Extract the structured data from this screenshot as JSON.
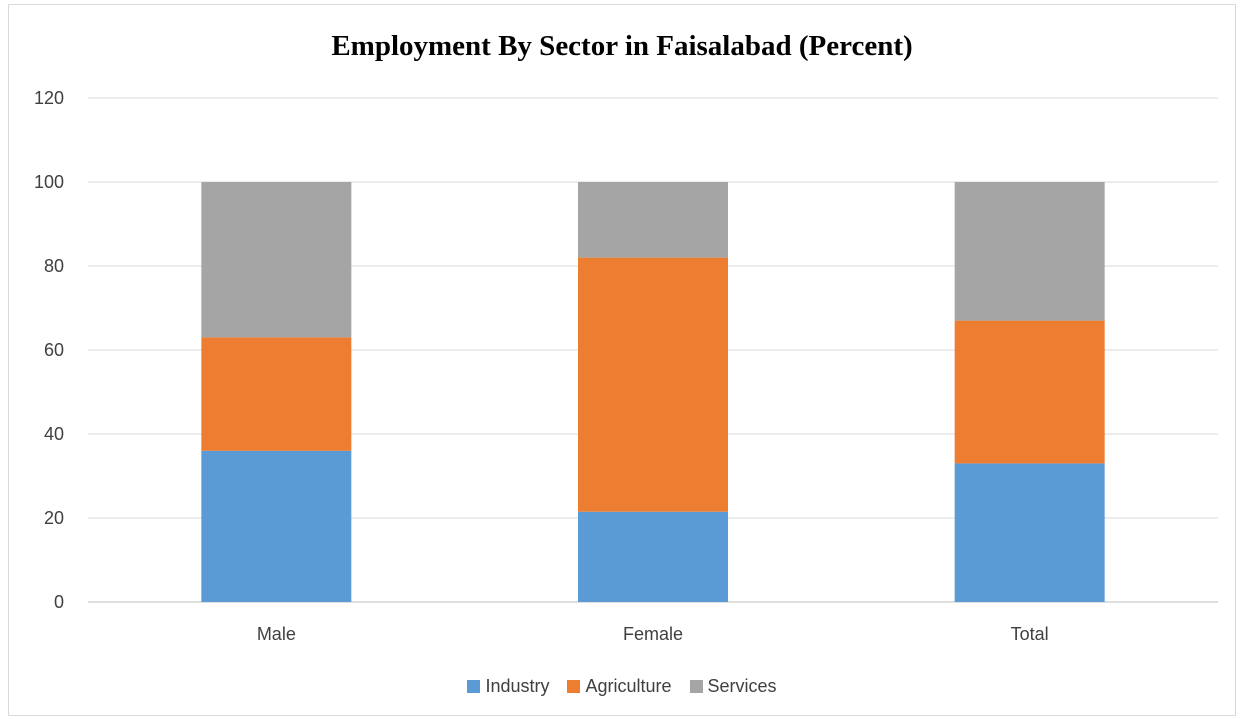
{
  "chart_data": {
    "type": "bar",
    "stacked": true,
    "title": "Employment By Sector in Faisalabad (Percent)",
    "categories": [
      "Male",
      "Female",
      "Total"
    ],
    "series": [
      {
        "name": "Industry",
        "color": "#5b9bd5",
        "values": [
          36,
          21.5,
          33
        ]
      },
      {
        "name": "Agriculture",
        "color": "#ed7d31",
        "values": [
          27,
          60.5,
          34
        ]
      },
      {
        "name": "Services",
        "color": "#a5a5a5",
        "values": [
          37,
          18,
          33
        ]
      }
    ],
    "ylim": [
      0,
      120
    ],
    "yticks": [
      0,
      20,
      40,
      60,
      80,
      100,
      120
    ],
    "grid": true,
    "legend_position": "bottom"
  }
}
